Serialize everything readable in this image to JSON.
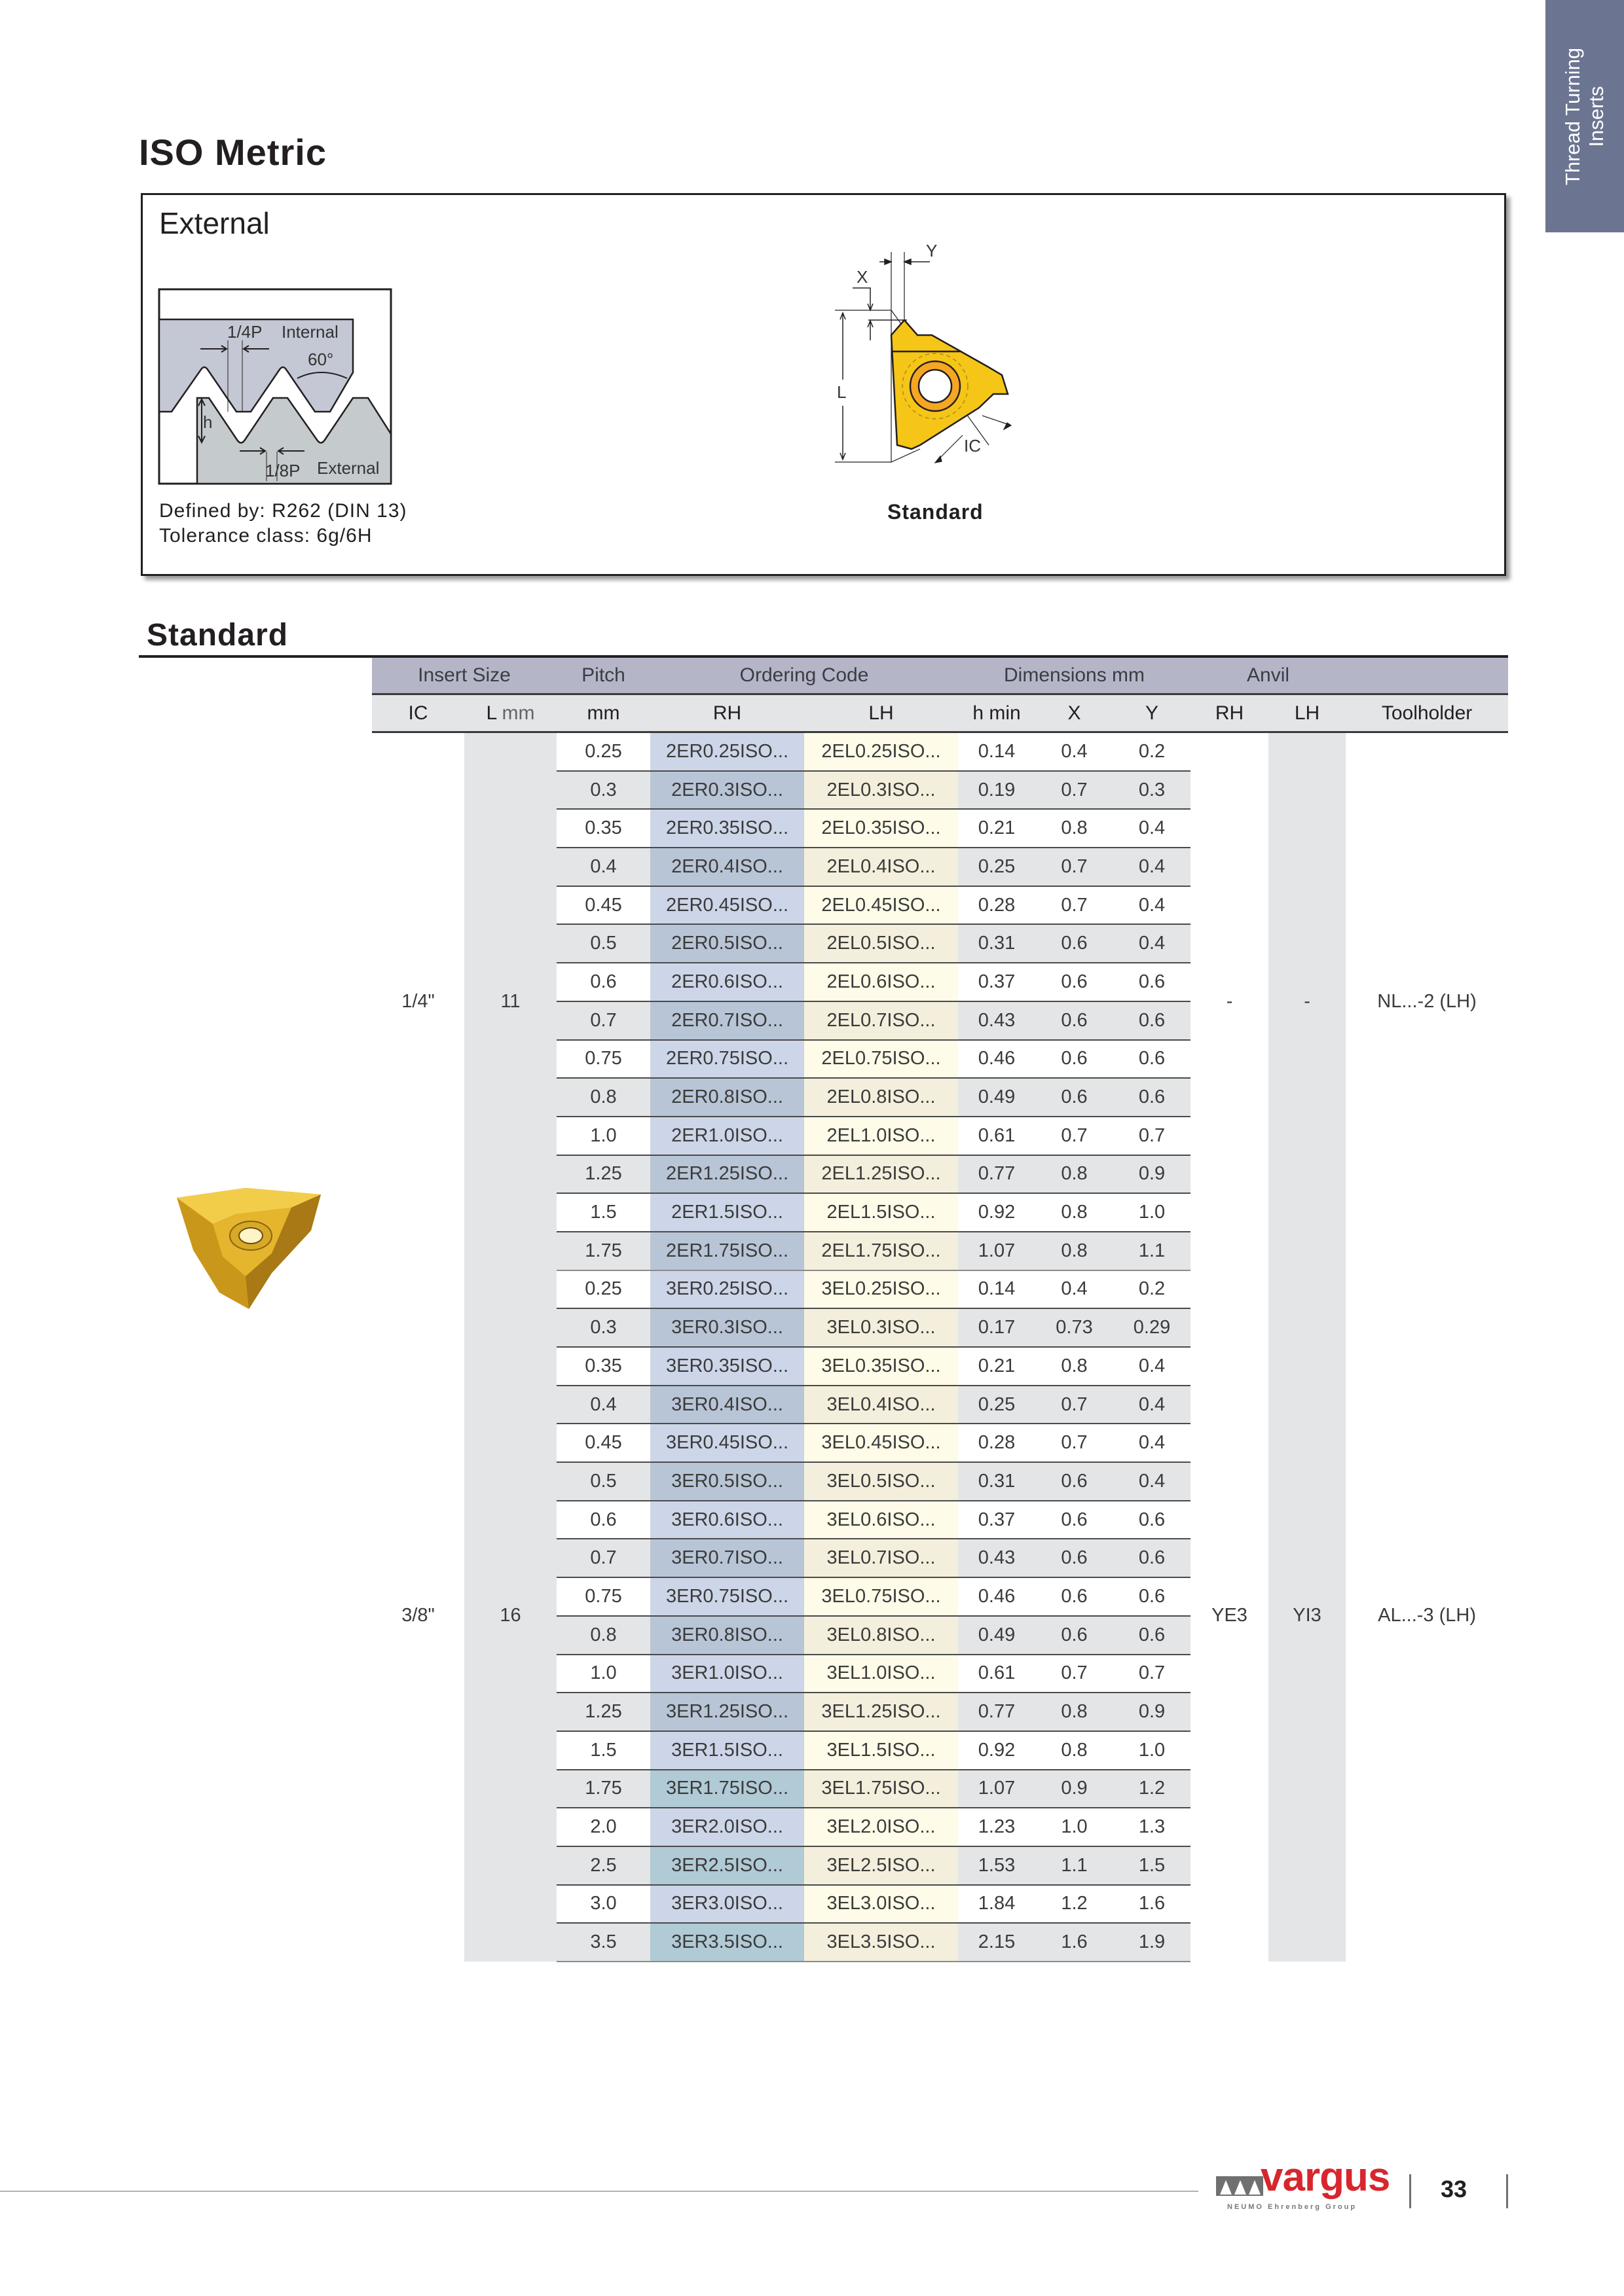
{
  "side_tab": {
    "line1": "Thread Turning",
    "line2": "Inserts",
    "color": "#6b7591"
  },
  "page_title": "ISO Metric",
  "info_box": {
    "title": "External",
    "thread_diagram": {
      "quarter_p": "1/4P",
      "internal": "Internal",
      "angle": "60°",
      "h": "h",
      "eighth_p": "1/8P",
      "external": "External"
    },
    "insert_diagram": {
      "x": "X",
      "y": "Y",
      "l": "L",
      "ic": "IC",
      "caption": "Standard"
    },
    "defined_by": "Defined by: R262 (DIN 13)",
    "tolerance": "Tolerance class: 6g/6H"
  },
  "section_title": "Standard",
  "table": {
    "group_headers": {
      "insert_size": "Insert Size",
      "pitch": "Pitch",
      "ordering_code": "Ordering Code",
      "dimensions": "Dimensions mm",
      "anvil": "Anvil"
    },
    "columns": {
      "ic": "IC",
      "l": "L",
      "l_unit": "mm",
      "pitch": "mm",
      "rh": "RH",
      "lh": "LH",
      "hmin": "h min",
      "x": "X",
      "y": "Y",
      "anvil_rh": "RH",
      "anvil_lh": "LH",
      "toolholder": "Toolholder"
    },
    "groups": [
      {
        "ic": "1/4\"",
        "l_mm": "11",
        "anvil_rh": "-",
        "anvil_lh": "-",
        "toolholder": "NL...-2 (LH)",
        "rows": [
          [
            "0.25",
            "2ER0.25ISO...",
            "2EL0.25ISO...",
            "0.14",
            "0.4",
            "0.2"
          ],
          [
            "0.3",
            "2ER0.3ISO...",
            "2EL0.3ISO...",
            "0.19",
            "0.7",
            "0.3"
          ],
          [
            "0.35",
            "2ER0.35ISO...",
            "2EL0.35ISO...",
            "0.21",
            "0.8",
            "0.4"
          ],
          [
            "0.4",
            "2ER0.4ISO...",
            "2EL0.4ISO...",
            "0.25",
            "0.7",
            "0.4"
          ],
          [
            "0.45",
            "2ER0.45ISO...",
            "2EL0.45ISO...",
            "0.28",
            "0.7",
            "0.4"
          ],
          [
            "0.5",
            "2ER0.5ISO...",
            "2EL0.5ISO...",
            "0.31",
            "0.6",
            "0.4"
          ],
          [
            "0.6",
            "2ER0.6ISO...",
            "2EL0.6ISO...",
            "0.37",
            "0.6",
            "0.6"
          ],
          [
            "0.7",
            "2ER0.7ISO...",
            "2EL0.7ISO...",
            "0.43",
            "0.6",
            "0.6"
          ],
          [
            "0.75",
            "2ER0.75ISO...",
            "2EL0.75ISO...",
            "0.46",
            "0.6",
            "0.6"
          ],
          [
            "0.8",
            "2ER0.8ISO...",
            "2EL0.8ISO...",
            "0.49",
            "0.6",
            "0.6"
          ],
          [
            "1.0",
            "2ER1.0ISO...",
            "2EL1.0ISO...",
            "0.61",
            "0.7",
            "0.7"
          ],
          [
            "1.25",
            "2ER1.25ISO...",
            "2EL1.25ISO...",
            "0.77",
            "0.8",
            "0.9"
          ],
          [
            "1.5",
            "2ER1.5ISO...",
            "2EL1.5ISO...",
            "0.92",
            "0.8",
            "1.0"
          ],
          [
            "1.75",
            "2ER1.75ISO...",
            "2EL1.75ISO...",
            "1.07",
            "0.8",
            "1.1"
          ]
        ]
      },
      {
        "ic": "3/8\"",
        "l_mm": "16",
        "anvil_rh": "YE3",
        "anvil_lh": "YI3",
        "toolholder": "AL...-3 (LH)",
        "rows": [
          [
            "0.25",
            "3ER0.25ISO...",
            "3EL0.25ISO...",
            "0.14",
            "0.4",
            "0.2"
          ],
          [
            "0.3",
            "3ER0.3ISO...",
            "3EL0.3ISO...",
            "0.17",
            "0.73",
            "0.29"
          ],
          [
            "0.35",
            "3ER0.35ISO...",
            "3EL0.35ISO...",
            "0.21",
            "0.8",
            "0.4"
          ],
          [
            "0.4",
            "3ER0.4ISO...",
            "3EL0.4ISO...",
            "0.25",
            "0.7",
            "0.4"
          ],
          [
            "0.45",
            "3ER0.45ISO...",
            "3EL0.45ISO...",
            "0.28",
            "0.7",
            "0.4"
          ],
          [
            "0.5",
            "3ER0.5ISO...",
            "3EL0.5ISO...",
            "0.31",
            "0.6",
            "0.4"
          ],
          [
            "0.6",
            "3ER0.6ISO...",
            "3EL0.6ISO...",
            "0.37",
            "0.6",
            "0.6"
          ],
          [
            "0.7",
            "3ER0.7ISO...",
            "3EL0.7ISO...",
            "0.43",
            "0.6",
            "0.6"
          ],
          [
            "0.75",
            "3ER0.75ISO...",
            "3EL0.75ISO...",
            "0.46",
            "0.6",
            "0.6"
          ],
          [
            "0.8",
            "3ER0.8ISO...",
            "3EL0.8ISO...",
            "0.49",
            "0.6",
            "0.6"
          ],
          [
            "1.0",
            "3ER1.0ISO...",
            "3EL1.0ISO...",
            "0.61",
            "0.7",
            "0.7"
          ],
          [
            "1.25",
            "3ER1.25ISO...",
            "3EL1.25ISO...",
            "0.77",
            "0.8",
            "0.9"
          ],
          [
            "1.5",
            "3ER1.5ISO...",
            "3EL1.5ISO...",
            "0.92",
            "0.8",
            "1.0"
          ],
          [
            "1.75",
            "3ER1.75ISO...",
            "3EL1.75ISO...",
            "1.07",
            "0.9",
            "1.2"
          ],
          [
            "2.0",
            "3ER2.0ISO...",
            "3EL2.0ISO...",
            "1.23",
            "1.0",
            "1.3"
          ],
          [
            "2.5",
            "3ER2.5ISO...",
            "3EL2.5ISO...",
            "1.53",
            "1.1",
            "1.5"
          ],
          [
            "3.0",
            "3ER3.0ISO...",
            "3EL3.0ISO...",
            "1.84",
            "1.2",
            "1.6"
          ],
          [
            "3.5",
            "3ER3.5ISO...",
            "3EL3.5ISO...",
            "2.15",
            "1.6",
            "1.9"
          ]
        ]
      }
    ]
  },
  "footer": {
    "logo_word": "vargus",
    "logo_sub": "NEUMO Ehrenberg Group",
    "page_number": "33",
    "brand_color": "#d7262e"
  },
  "colors": {
    "header_band": "#b4b6c8",
    "rh_col": "#cdd6e8",
    "lh_col": "#fefbe8",
    "insert_gold": "#f5c518"
  }
}
